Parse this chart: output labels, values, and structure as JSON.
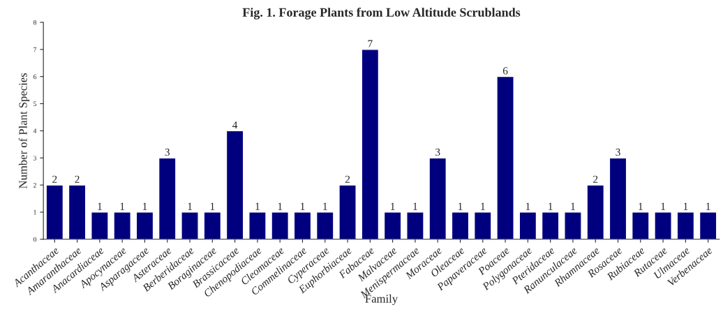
{
  "chart_data": {
    "type": "bar",
    "title": "Fig. 1. Forage Plants from Low Altitude Scrublands",
    "xlabel": "Family",
    "ylabel": "Number of Plant Species",
    "categories": [
      "Acanthaceae",
      "Amaranthaceae",
      "Anacardiaceae",
      "Apocynaceae",
      "Asparagaceae",
      "Asteraceae",
      "Berberidaceae",
      "Boraginaceae",
      "Brassicaceae",
      "Chenopodiaceae",
      "Cleomaceae",
      "Commelinaceae",
      "Cyperaceae",
      "Euphorbiaceae",
      "Fabaceae",
      "Malvaceae",
      "Menispermaceae",
      "Moraceae",
      "Oleaceae",
      "Papaveraceae",
      "Poaceae",
      "Polygonaceae",
      "Pteridaceae",
      "Ranunculaceae",
      "Rhamnaceae",
      "Rosaceae",
      "Rubiaceae",
      "Rutaceae",
      "Ulmaceae",
      "Verbenaceae"
    ],
    "values": [
      2,
      2,
      1,
      1,
      1,
      3,
      1,
      1,
      4,
      1,
      1,
      1,
      1,
      2,
      7,
      1,
      1,
      3,
      1,
      1,
      6,
      1,
      1,
      1,
      2,
      3,
      1,
      1,
      1,
      1
    ],
    "color": "#00007f",
    "ylim": [
      0,
      8
    ],
    "yticks": [
      0,
      1,
      2,
      3,
      4,
      5,
      6,
      7,
      8
    ],
    "data_labels": true,
    "grid": false,
    "legend": false
  }
}
